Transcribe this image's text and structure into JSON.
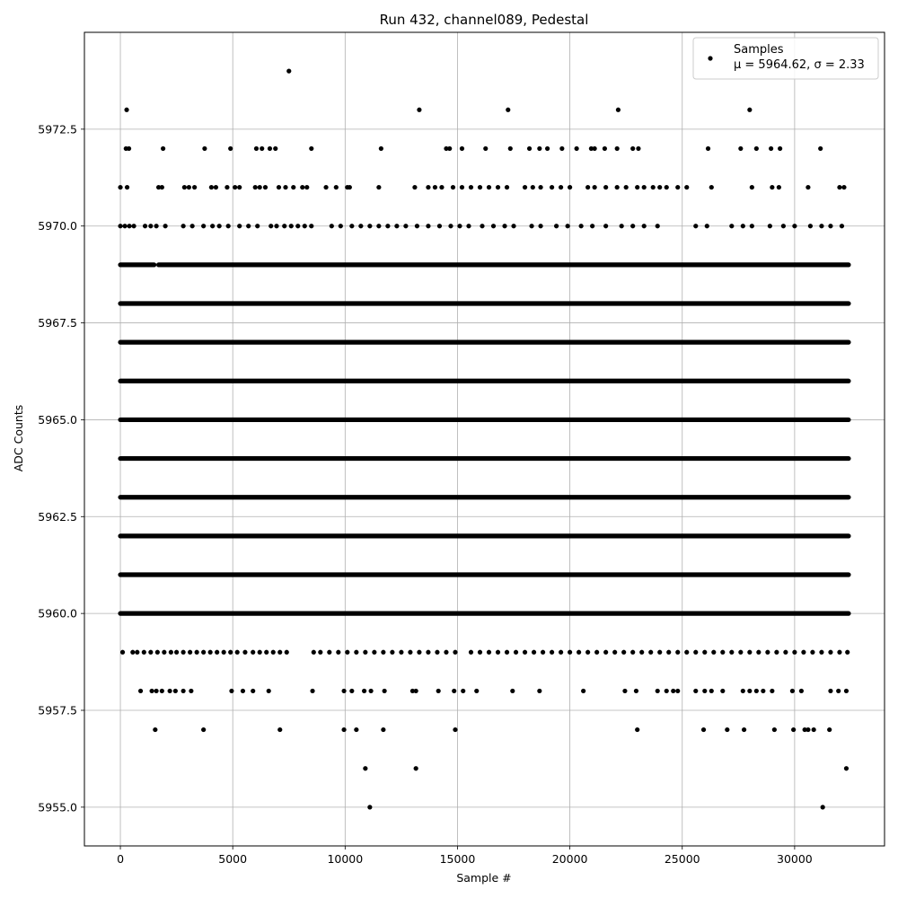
{
  "chart_data": {
    "type": "scatter",
    "title": "Run 432, channel089, Pedestal",
    "xlabel": "Sample #",
    "ylabel": "ADC Counts",
    "xlim": [
      -1600,
      34000
    ],
    "ylim": [
      5954.0,
      5975.0
    ],
    "x_ticks": [
      0,
      5000,
      10000,
      15000,
      20000,
      25000,
      30000
    ],
    "x_tick_labels": [
      "0",
      "5000",
      "10000",
      "15000",
      "20000",
      "25000",
      "30000"
    ],
    "y_ticks": [
      5955.0,
      5957.5,
      5960.0,
      5962.5,
      5965.0,
      5967.5,
      5970.0,
      5972.5
    ],
    "y_tick_labels": [
      "5955.0",
      "5957.5",
      "5960.0",
      "5962.5",
      "5965.0",
      "5967.5",
      "5970.0",
      "5972.5"
    ],
    "grid": true,
    "legend_position": "top-right",
    "marker_color": "#000000",
    "series": [
      {
        "name": "Samples",
        "legend_line2": "μ = 5964.62, σ = 2.33",
        "x_max": 32400,
        "levels": [
          {
            "y": 5974,
            "x": [
              7500
            ]
          },
          {
            "y": 5973,
            "x": [
              280,
              13300,
              17250,
              22150,
              28000
            ]
          },
          {
            "y": 5972,
            "x": [
              250,
              380,
              1900,
              3750,
              4900,
              6050,
              6300,
              6650,
              6900,
              8500,
              11600,
              14500,
              14650,
              15200,
              16250,
              17350,
              18200,
              18650,
              19000,
              19650,
              20300,
              20950,
              21100,
              21550,
              22100,
              22800,
              23050,
              26150,
              27600,
              28300,
              28950,
              29350,
              31150
            ]
          },
          {
            "y": 5971,
            "x": [
              0,
              300,
              1700,
              1850,
              2850,
              3050,
              3300,
              4050,
              4250,
              4750,
              5100,
              5300,
              6000,
              6200,
              6450,
              7050,
              7350,
              7700,
              8100,
              8300,
              9150,
              9600,
              10100,
              10200,
              11500,
              13100,
              13700,
              14000,
              14300,
              14800,
              15200,
              15600,
              16000,
              16400,
              16800,
              17200,
              18000,
              18350,
              18700,
              19200,
              19600,
              20000,
              20800,
              21100,
              21600,
              22100,
              22500,
              23000,
              23300,
              23700,
              24000,
              24300,
              24800,
              25200,
              26300,
              28100,
              29000,
              29300,
              30600,
              32000,
              32200
            ]
          },
          {
            "y": 5970,
            "x": [
              0,
              200,
              400,
              600,
              1100,
              1350,
              1600,
              2000,
              2800,
              3200,
              3700,
              4100,
              4400,
              4800,
              5300,
              5700,
              6100,
              6700,
              6950,
              7300,
              7600,
              7900,
              8200,
              8500,
              9400,
              9800,
              10300,
              10700,
              11100,
              11500,
              11900,
              12300,
              12700,
              13200,
              13700,
              14200,
              14700,
              15100,
              15500,
              16100,
              16600,
              17100,
              17500,
              18300,
              18700,
              19400,
              19900,
              20500,
              21000,
              21600,
              22300,
              22800,
              23300,
              23900,
              25600,
              26100,
              27200,
              27700,
              28100,
              28900,
              29500,
              30000,
              30700,
              31200,
              31600,
              32100
            ]
          },
          {
            "y": 5969,
            "x_dense": [
              [
                0,
                1500
              ],
              [
                1700,
                32400
              ]
            ]
          },
          {
            "y": 5968,
            "x_dense": [
              [
                0,
                32400
              ]
            ]
          },
          {
            "y": 5967,
            "x_dense": [
              [
                0,
                32400
              ]
            ]
          },
          {
            "y": 5966,
            "x_dense": [
              [
                0,
                32400
              ]
            ]
          },
          {
            "y": 5965,
            "x_dense": [
              [
                0,
                32400
              ]
            ]
          },
          {
            "y": 5964,
            "x_dense": [
              [
                0,
                32400
              ]
            ]
          },
          {
            "y": 5963,
            "x_dense": [
              [
                0,
                32400
              ]
            ]
          },
          {
            "y": 5962,
            "x_dense": [
              [
                0,
                32400
              ]
            ]
          },
          {
            "y": 5961,
            "x_dense": [
              [
                0,
                32400
              ]
            ]
          },
          {
            "y": 5960,
            "x_dense": [
              [
                0,
                32400
              ]
            ]
          },
          {
            "y": 5959,
            "x": [
              100,
              550,
              750,
              1050,
              1350,
              1650,
              1950,
              2250,
              2500,
              2800,
              3100,
              3400,
              3700,
              4000,
              4300,
              4600,
              4900,
              5200,
              5550,
              5900,
              6200,
              6500,
              6800,
              7100,
              7400,
              8600,
              8900,
              9300,
              9700,
              10100,
              10500,
              10900,
              11300,
              11700,
              12100,
              12500,
              12900,
              13300,
              13700,
              14100,
              14500,
              14900,
              15600,
              16000,
              16400,
              16800,
              17200,
              17600,
              18000,
              18400,
              18800,
              19200,
              19600,
              20000,
              20400,
              20800,
              21200,
              21600,
              22000,
              22400,
              22800,
              23200,
              23600,
              24000,
              24400,
              24800,
              25200,
              25600,
              26000,
              26400,
              26800,
              27200,
              27600,
              28000,
              28400,
              28800,
              29200,
              29600,
              30000,
              30400,
              30800,
              31200,
              31600,
              32000,
              32350
            ]
          },
          {
            "y": 5958,
            "x": [
              900,
              1400,
              1600,
              1850,
              2200,
              2450,
              2800,
              3150,
              4950,
              5450,
              5900,
              6600,
              8550,
              9950,
              10300,
              10850,
              11150,
              11750,
              13000,
              13150,
              14150,
              14850,
              15250,
              15850,
              17450,
              18650,
              20600,
              22450,
              22950,
              23900,
              24300,
              24600,
              24800,
              25600,
              26000,
              26300,
              26800,
              27700,
              28000,
              28300,
              28600,
              29000,
              29900,
              30300,
              31600,
              31950,
              32300
            ]
          },
          {
            "y": 5957,
            "x": [
              1550,
              3700,
              7100,
              9950,
              10500,
              11700,
              14900,
              23000,
              25950,
              27000,
              27750,
              29100,
              29950,
              30450,
              30600,
              30850,
              31550
            ]
          },
          {
            "y": 5956,
            "x": [
              10900,
              13150,
              32300
            ]
          },
          {
            "y": 5955,
            "x": [
              11100,
              31250
            ]
          }
        ]
      }
    ]
  }
}
